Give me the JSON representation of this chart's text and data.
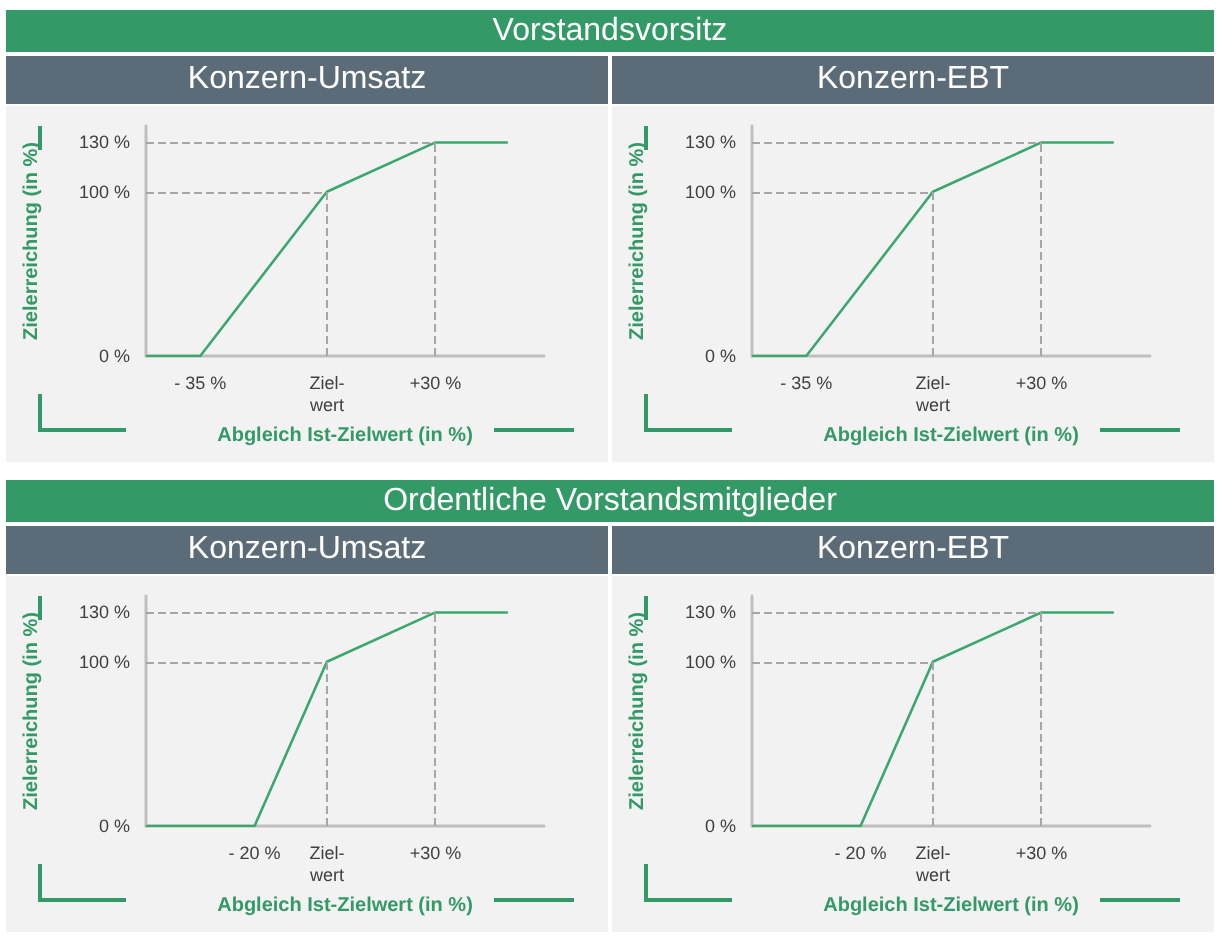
{
  "chart_data": [
    {
      "type": "line",
      "title": "Vorstandsvorsitz",
      "subtitle": "Konzern-Umsatz",
      "xlabel": "Abgleich Ist-Zielwert (in %)",
      "ylabel": "Zielerreichung (in %)",
      "x": [
        -50,
        -35,
        0,
        30,
        50
      ],
      "series": [
        {
          "color": "#3aa76d",
          "values": [
            0,
            0,
            100,
            130,
            130
          ]
        }
      ],
      "xlim": [
        -50,
        60
      ],
      "ylim": [
        0,
        140
      ],
      "xticks": [
        {
          "value": -35,
          "label": "- 35 %"
        },
        {
          "value": 0,
          "label": "Ziel-\nwert"
        },
        {
          "value": 30,
          "label": "+30 %"
        }
      ],
      "yticks": [
        {
          "value": 0,
          "label": "0 %"
        },
        {
          "value": 100,
          "label": "100 %"
        },
        {
          "value": 130,
          "label": "130 %"
        }
      ],
      "ref_lines": [
        {
          "axis": "y",
          "value": 100,
          "color": "#a6a6a6",
          "line_style": "dashed"
        },
        {
          "axis": "y",
          "value": 130,
          "color": "#a6a6a6",
          "line_style": "dashed"
        },
        {
          "axis": "x",
          "value": 0,
          "color": "#a6a6a6",
          "line_style": "dashed"
        },
        {
          "axis": "x",
          "value": 30,
          "color": "#a6a6a6",
          "line_style": "dashed"
        }
      ],
      "grid": false,
      "marker": "none",
      "line_style": "solid"
    },
    {
      "type": "line",
      "subtitle": "Konzern-EBT",
      "xlabel": "Abgleich Ist-Zielwert (in %)",
      "ylabel": "Zielerreichung (in %)",
      "x": [
        -50,
        -35,
        0,
        30,
        50
      ],
      "series": [
        {
          "color": "#3aa76d",
          "values": [
            0,
            0,
            100,
            130,
            130
          ]
        }
      ],
      "xlim": [
        -50,
        60
      ],
      "ylim": [
        0,
        140
      ],
      "xticks": [
        {
          "value": -35,
          "label": "- 35 %"
        },
        {
          "value": 0,
          "label": "Ziel-\nwert"
        },
        {
          "value": 30,
          "label": "+30 %"
        }
      ],
      "yticks": [
        {
          "value": 0,
          "label": "0 %"
        },
        {
          "value": 100,
          "label": "100 %"
        },
        {
          "value": 130,
          "label": "130 %"
        }
      ],
      "ref_lines": [
        {
          "axis": "y",
          "value": 100,
          "color": "#a6a6a6",
          "line_style": "dashed"
        },
        {
          "axis": "y",
          "value": 130,
          "color": "#a6a6a6",
          "line_style": "dashed"
        },
        {
          "axis": "x",
          "value": 0,
          "color": "#a6a6a6",
          "line_style": "dashed"
        },
        {
          "axis": "x",
          "value": 30,
          "color": "#a6a6a6",
          "line_style": "dashed"
        }
      ],
      "grid": false,
      "marker": "none",
      "line_style": "solid"
    },
    {
      "type": "line",
      "title": "Ordentliche Vorstandsmitglieder",
      "subtitle": "Konzern-Umsatz",
      "xlabel": "Abgleich Ist-Zielwert (in %)",
      "ylabel": "Zielerreichung (in %)",
      "x": [
        -50,
        -20,
        0,
        30,
        50
      ],
      "series": [
        {
          "color": "#3aa76d",
          "values": [
            0,
            0,
            100,
            130,
            130
          ]
        }
      ],
      "xlim": [
        -50,
        60
      ],
      "ylim": [
        0,
        140
      ],
      "xticks": [
        {
          "value": -20,
          "label": "- 20 %"
        },
        {
          "value": 0,
          "label": "Ziel-\nwert"
        },
        {
          "value": 30,
          "label": "+30 %"
        }
      ],
      "yticks": [
        {
          "value": 0,
          "label": "0 %"
        },
        {
          "value": 100,
          "label": "100 %"
        },
        {
          "value": 130,
          "label": "130 %"
        }
      ],
      "ref_lines": [
        {
          "axis": "y",
          "value": 100,
          "color": "#a6a6a6",
          "line_style": "dashed"
        },
        {
          "axis": "y",
          "value": 130,
          "color": "#a6a6a6",
          "line_style": "dashed"
        },
        {
          "axis": "x",
          "value": 0,
          "color": "#a6a6a6",
          "line_style": "dashed"
        },
        {
          "axis": "x",
          "value": 30,
          "color": "#a6a6a6",
          "line_style": "dashed"
        }
      ],
      "grid": false,
      "marker": "none",
      "line_style": "solid"
    },
    {
      "type": "line",
      "subtitle": "Konzern-EBT",
      "xlabel": "Abgleich Ist-Zielwert (in %)",
      "ylabel": "Zielerreichung (in %)",
      "x": [
        -50,
        -20,
        0,
        30,
        50
      ],
      "series": [
        {
          "color": "#3aa76d",
          "values": [
            0,
            0,
            100,
            130,
            130
          ]
        }
      ],
      "xlim": [
        -50,
        60
      ],
      "ylim": [
        0,
        140
      ],
      "xticks": [
        {
          "value": -20,
          "label": "- 20 %"
        },
        {
          "value": 0,
          "label": "Ziel-\nwert"
        },
        {
          "value": 30,
          "label": "+30 %"
        }
      ],
      "yticks": [
        {
          "value": 0,
          "label": "0 %"
        },
        {
          "value": 100,
          "label": "100 %"
        },
        {
          "value": 130,
          "label": "130 %"
        }
      ],
      "ref_lines": [
        {
          "axis": "y",
          "value": 100,
          "color": "#a6a6a6",
          "line_style": "dashed"
        },
        {
          "axis": "y",
          "value": 130,
          "color": "#a6a6a6",
          "line_style": "dashed"
        },
        {
          "axis": "x",
          "value": 0,
          "color": "#a6a6a6",
          "line_style": "dashed"
        },
        {
          "axis": "x",
          "value": 30,
          "color": "#a6a6a6",
          "line_style": "dashed"
        }
      ],
      "grid": false,
      "marker": "none",
      "line_style": "solid"
    }
  ]
}
